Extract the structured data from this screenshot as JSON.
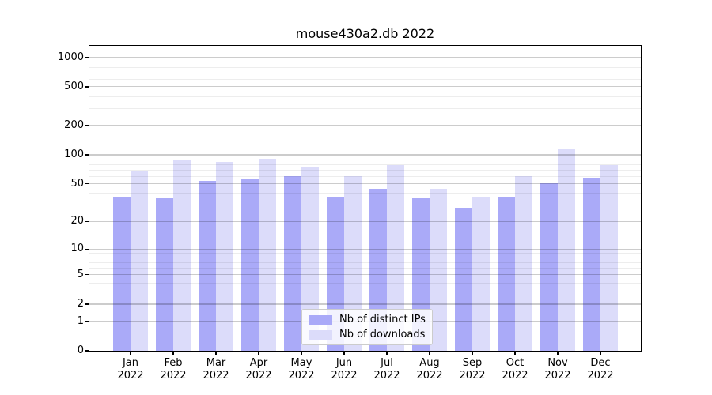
{
  "title": "mouse430a2.db 2022",
  "chart_data": {
    "type": "bar",
    "title": "mouse430a2.db 2022",
    "categories": [
      "Jan 2022",
      "Feb 2022",
      "Mar 2022",
      "Apr 2022",
      "May 2022",
      "Jun 2022",
      "Jul 2022",
      "Aug 2022",
      "Sep 2022",
      "Oct 2022",
      "Nov 2022",
      "Dec 2022"
    ],
    "series": [
      {
        "name": "Nb of distinct IPs",
        "color": "#aaaaf8",
        "values": [
          37,
          35,
          54,
          56,
          60,
          37,
          44,
          36,
          28,
          37,
          51,
          58
        ]
      },
      {
        "name": "Nb of downloads",
        "color": "#dcdcfa",
        "values": [
          69,
          88,
          85,
          91,
          74,
          60,
          78,
          44,
          37,
          60,
          115,
          78
        ]
      }
    ],
    "xlabel": "",
    "ylabel": "",
    "y_scale": "log10(1+x)",
    "y_ticks": [
      0,
      1,
      2,
      5,
      10,
      20,
      50,
      100,
      200,
      500,
      1000
    ],
    "y_minor_ticks": [
      3,
      4,
      6,
      7,
      8,
      9,
      30,
      40,
      60,
      70,
      80,
      90,
      300,
      400,
      600,
      700,
      800,
      900
    ],
    "ylim": [
      0,
      1320
    ],
    "grid": true,
    "legend_position": "bottom-center"
  },
  "colors": {
    "bar_distinct_ips": "#aaaaf8",
    "bar_downloads": "#dcdcfa",
    "spine": "#000000",
    "grid_major": "#cccccc",
    "grid_minor": "#ededed",
    "legend_border": "#cccccc",
    "background": "#ffffff"
  }
}
